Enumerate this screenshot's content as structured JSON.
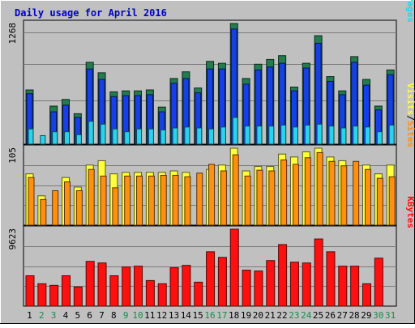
{
  "title": "Daily usage for April 2016",
  "colors": {
    "background": "#c0c0c0",
    "title_text": "#0000cc",
    "hits": "#237b4e",
    "files": "#1640e6",
    "pages": "#2ad3ec",
    "visits": "#ffff40",
    "sites": "#ff9010",
    "kbytes": "#ff1010",
    "weekend_label": "#1a8a4a",
    "weekday_label": "#000000"
  },
  "chart_data": [
    {
      "type": "bar",
      "panel": "pages-files-hits",
      "ymax_label": "1268",
      "legend": [
        {
          "text": "Pages",
          "color_key": "pages"
        },
        {
          "text": "Files",
          "color_key": "files"
        },
        {
          "text": "Hits",
          "color_key": "hits"
        }
      ],
      "legend_separator": "/",
      "categories": [
        "1",
        "2",
        "3",
        "4",
        "5",
        "6",
        "7",
        "8",
        "9",
        "10",
        "11",
        "12",
        "13",
        "14",
        "15",
        "16",
        "17",
        "18",
        "19",
        "20",
        "21",
        "22",
        "23",
        "24",
        "25",
        "26",
        "27",
        "28",
        "29",
        "30",
        "31"
      ],
      "weekend_days": [
        "2",
        "3",
        "9",
        "10",
        "16",
        "17",
        "23",
        "24",
        "30",
        "31"
      ],
      "ylim": [
        0,
        1268
      ],
      "series": [
        {
          "name": "Hits",
          "color_key": "hits",
          "values": [
            570,
            0,
            400,
            470,
            320,
            860,
            750,
            550,
            560,
            560,
            570,
            390,
            690,
            760,
            590,
            870,
            850,
            1268,
            690,
            840,
            890,
            930,
            600,
            850,
            1140,
            710,
            560,
            920,
            680,
            400,
            780
          ]
        },
        {
          "name": "Files",
          "color_key": "files",
          "values": [
            530,
            0,
            340,
            410,
            280,
            790,
            680,
            500,
            510,
            510,
            520,
            340,
            640,
            690,
            540,
            790,
            790,
            1210,
            630,
            780,
            810,
            850,
            560,
            800,
            1060,
            660,
            520,
            860,
            620,
            360,
            730
          ]
        },
        {
          "name": "Pages",
          "color_key": "pages",
          "values": [
            160,
            90,
            130,
            130,
            100,
            240,
            210,
            160,
            130,
            160,
            160,
            150,
            170,
            180,
            170,
            160,
            180,
            280,
            190,
            190,
            190,
            200,
            180,
            200,
            210,
            190,
            170,
            190,
            180,
            130,
            200
          ]
        }
      ]
    },
    {
      "type": "bar",
      "panel": "sites-visits",
      "ymax_label": "105",
      "legend": [
        {
          "text": "Sites",
          "color_key": "sites"
        },
        {
          "text": "Visits",
          "color_key": "visits"
        }
      ],
      "legend_separator": "/",
      "categories": [
        "1",
        "2",
        "3",
        "4",
        "5",
        "6",
        "7",
        "8",
        "9",
        "10",
        "11",
        "12",
        "13",
        "14",
        "15",
        "16",
        "17",
        "18",
        "19",
        "20",
        "21",
        "22",
        "23",
        "24",
        "25",
        "26",
        "27",
        "28",
        "29",
        "30",
        "31"
      ],
      "ylim": [
        0,
        105
      ],
      "series": [
        {
          "name": "Visits",
          "color_key": "visits",
          "values": [
            70,
            40,
            0,
            65,
            52,
            82,
            88,
            70,
            72,
            72,
            72,
            72,
            74,
            72,
            0,
            76,
            82,
            105,
            74,
            80,
            80,
            97,
            93,
            100,
            105,
            93,
            88,
            0,
            82,
            70,
            82
          ]
        },
        {
          "name": "Sites",
          "color_key": "sites",
          "values": [
            65,
            35,
            47,
            59,
            47,
            76,
            67,
            51,
            67,
            67,
            67,
            68,
            68,
            66,
            71,
            83,
            74,
            96,
            67,
            75,
            74,
            89,
            83,
            92,
            99,
            87,
            81,
            87,
            76,
            64,
            66
          ]
        }
      ]
    },
    {
      "type": "bar",
      "panel": "kbytes",
      "ymax_label": "9623",
      "legend": [
        {
          "text": "KBytes",
          "color_key": "kbytes"
        }
      ],
      "legend_separator": "",
      "categories": [
        "1",
        "2",
        "3",
        "4",
        "5",
        "6",
        "7",
        "8",
        "9",
        "10",
        "11",
        "12",
        "13",
        "14",
        "15",
        "16",
        "17",
        "18",
        "19",
        "20",
        "21",
        "22",
        "23",
        "24",
        "25",
        "26",
        "27",
        "28",
        "29",
        "30",
        "31"
      ],
      "ylim": [
        0,
        9623
      ],
      "series": [
        {
          "name": "KBytes",
          "color_key": "kbytes",
          "values": [
            3800,
            2800,
            2600,
            3800,
            2400,
            5600,
            5400,
            3800,
            4900,
            5000,
            3200,
            2800,
            4800,
            5100,
            3000,
            6800,
            6100,
            9623,
            4500,
            4400,
            5700,
            7700,
            5500,
            5400,
            8400,
            6800,
            5000,
            5000,
            2800,
            6000,
            0
          ]
        }
      ]
    }
  ]
}
